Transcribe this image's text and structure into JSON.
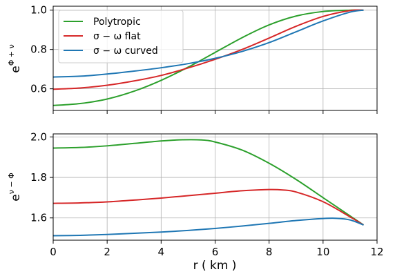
{
  "chart_data": [
    {
      "type": "line",
      "ylabel": "e^{Φ+ν}",
      "ylabel_base": "e",
      "ylabel_sup": "Φ + ν",
      "xlim": [
        0,
        12
      ],
      "ylim": [
        0.49,
        1.02
      ],
      "xticks": [
        0,
        2,
        4,
        6,
        8,
        10,
        12
      ],
      "yticks": [
        0.6,
        0.8,
        1.0
      ],
      "ytick_labels": [
        "0.6",
        "0.8",
        "1.0"
      ],
      "grid": true,
      "legend": "upper-left",
      "series": [
        {
          "name": "Polytropic",
          "color": "#2ca02c",
          "x": [
            0,
            1,
            2,
            3,
            4,
            5,
            6,
            7,
            8,
            9,
            10,
            11,
            11.5
          ],
          "y": [
            0.515,
            0.525,
            0.548,
            0.588,
            0.643,
            0.71,
            0.785,
            0.86,
            0.925,
            0.97,
            0.993,
            1.0,
            1.0
          ]
        },
        {
          "name": "σ − ω flat",
          "color": "#d62728",
          "x": [
            0,
            1,
            2,
            3,
            4,
            5,
            6,
            7,
            8,
            9,
            10,
            11,
            11.5
          ],
          "y": [
            0.598,
            0.604,
            0.618,
            0.64,
            0.668,
            0.706,
            0.75,
            0.8,
            0.858,
            0.918,
            0.968,
            0.998,
            1.0
          ]
        },
        {
          "name": "σ − ω curved",
          "color": "#1f77b4",
          "x": [
            0,
            1,
            2,
            3,
            4,
            5,
            6,
            7,
            8,
            9,
            10,
            11,
            11.5
          ],
          "y": [
            0.66,
            0.664,
            0.675,
            0.69,
            0.707,
            0.728,
            0.755,
            0.79,
            0.835,
            0.89,
            0.945,
            0.99,
            1.0
          ]
        }
      ]
    },
    {
      "type": "line",
      "ylabel": "e^{ν−Φ}",
      "ylabel_base": "e",
      "ylabel_sup": "ν − Φ",
      "xlabel": "r ( km )",
      "xlim": [
        0,
        12
      ],
      "ylim": [
        1.49,
        2.015
      ],
      "xticks": [
        0,
        2,
        4,
        6,
        8,
        10,
        12
      ],
      "yticks": [
        1.6,
        1.8,
        2.0
      ],
      "ytick_labels": [
        "1.6",
        "1.8",
        "2.0"
      ],
      "grid": true,
      "series": [
        {
          "name": "Polytropic",
          "color": "#2ca02c",
          "x": [
            0,
            1,
            2,
            3,
            4,
            4.8,
            5.5,
            6,
            7,
            8,
            9,
            10,
            11,
            11.5
          ],
          "y": [
            1.945,
            1.948,
            1.956,
            1.968,
            1.98,
            1.986,
            1.985,
            1.975,
            1.935,
            1.87,
            1.79,
            1.7,
            1.61,
            1.565
          ]
        },
        {
          "name": "σ − ω flat",
          "color": "#d62728",
          "x": [
            0,
            1,
            2,
            3,
            4,
            5,
            6,
            7,
            8,
            8.5,
            9,
            10,
            11,
            11.5
          ],
          "y": [
            1.672,
            1.674,
            1.679,
            1.688,
            1.698,
            1.71,
            1.722,
            1.734,
            1.74,
            1.738,
            1.728,
            1.68,
            1.605,
            1.565
          ]
        },
        {
          "name": "σ − ω curved",
          "color": "#1f77b4",
          "x": [
            0,
            1,
            2,
            3,
            4,
            5,
            6,
            7,
            8,
            9,
            10,
            10.5,
            11,
            11.5
          ],
          "y": [
            1.512,
            1.514,
            1.518,
            1.524,
            1.53,
            1.538,
            1.548,
            1.56,
            1.573,
            1.587,
            1.597,
            1.598,
            1.59,
            1.565
          ]
        }
      ]
    }
  ]
}
